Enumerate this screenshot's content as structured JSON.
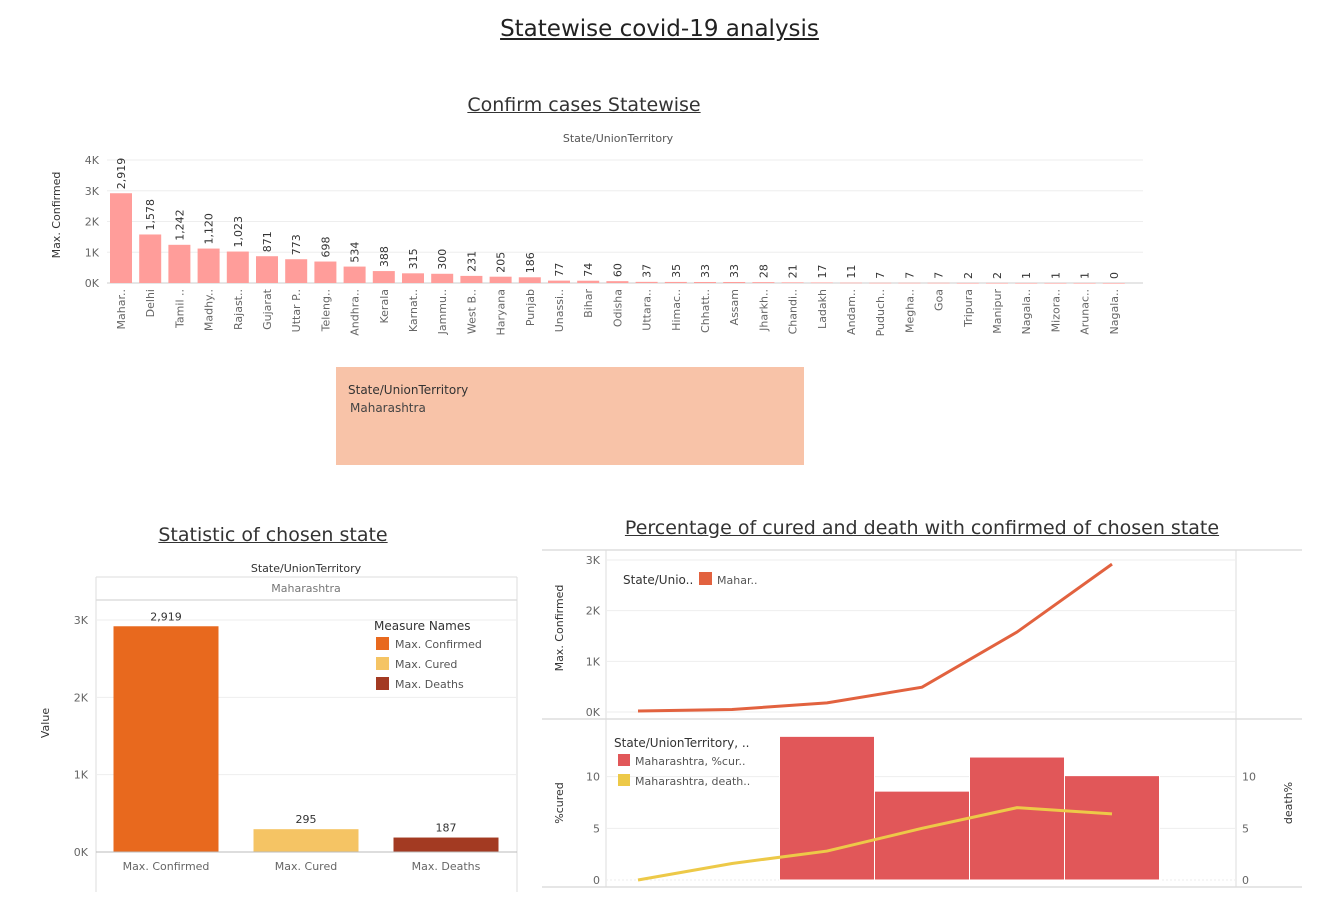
{
  "page_title": "Statewise covid-19 analysis",
  "filter": {
    "header": "State/UnionTerritory",
    "value": "Maharashtra"
  },
  "chart_data": [
    {
      "type": "bar",
      "title": "Confirm cases Statewise",
      "header": "State/UnionTerritory",
      "ylabel": "Max. Confirmed",
      "ylim": [
        0,
        4000
      ],
      "yticks": [
        "0K",
        "1K",
        "2K",
        "3K",
        "4K"
      ],
      "color": "#ff9d9a",
      "categories": [
        "Mahar..",
        "Delhi",
        "Tamil ..",
        "Madhy..",
        "Rajast..",
        "Gujarat",
        "Uttar P..",
        "Teleng..",
        "Andhra..",
        "Kerala",
        "Karnat..",
        "Jammu..",
        "West B..",
        "Haryana",
        "Punjab",
        "Unassi..",
        "Bihar",
        "Odisha",
        "Uttara..",
        "Himac..",
        "Chhatt..",
        "Assam",
        "Jharkh..",
        "Chandi..",
        "Ladakh",
        "Andam..",
        "Puduch..",
        "Megha..",
        "Goa",
        "Tripura",
        "Manipur",
        "Nagala..",
        "Mizora..",
        "Arunac..",
        "Nagala.."
      ],
      "values": [
        2919,
        1578,
        1242,
        1120,
        1023,
        871,
        773,
        698,
        534,
        388,
        315,
        300,
        231,
        205,
        186,
        77,
        74,
        60,
        37,
        35,
        33,
        33,
        28,
        21,
        17,
        11,
        7,
        7,
        7,
        2,
        2,
        1,
        1,
        1,
        0
      ],
      "value_labels": [
        "2,919",
        "1,578",
        "1,242",
        "1,120",
        "1,023",
        "871",
        "773",
        "698",
        "534",
        "388",
        "315",
        "300",
        "231",
        "205",
        "186",
        "77",
        "74",
        "60",
        "37",
        "35",
        "33",
        "33",
        "28",
        "21",
        "17",
        "11",
        "7",
        "7",
        "7",
        "2",
        "2",
        "1",
        "1",
        "1",
        "0"
      ]
    },
    {
      "type": "bar",
      "title": "Statistic of chosen state",
      "header": "State/UnionTerritory",
      "header_value": "Maharashtra",
      "ylabel": "Value",
      "ylim": [
        0,
        3000
      ],
      "yticks": [
        "0K",
        "1K",
        "2K",
        "3K"
      ],
      "categories": [
        "Max. Confirmed",
        "Max. Cured",
        "Max. Deaths"
      ],
      "values": [
        2919,
        295,
        187
      ],
      "value_labels": [
        "2,919",
        "295",
        "187"
      ],
      "colors": [
        "#e8691e",
        "#f5c464",
        "#a33a22"
      ],
      "legend": {
        "title": "Measure Names",
        "items": [
          "Max. Confirmed",
          "Max. Cured",
          "Max. Deaths"
        ],
        "position": "top-right"
      }
    },
    {
      "type": "line",
      "title": "Percentage of cured and death with confirmed of chosen state",
      "ylabel": "Max. Confirmed",
      "ylim": [
        0,
        3000
      ],
      "yticks": [
        "0K",
        "1K",
        "2K",
        "3K"
      ],
      "color": "#e2623f",
      "legend": {
        "title": "State/Unio..",
        "item": "Mahar..",
        "position": "top-left"
      },
      "values": [
        20,
        50,
        180,
        490,
        1578,
        2919
      ]
    },
    {
      "type": "bar",
      "ylabel_left": "%cured",
      "ylabel_right": "death%",
      "ylim": [
        0,
        15
      ],
      "yticks": [
        "0",
        "5",
        "10"
      ],
      "bar_color": "#e15759",
      "line_color": "#edc948",
      "legend": {
        "title": "State/UnionTerritory, ..",
        "items": [
          "Maharashtra, %cur..",
          "Maharashtra, death.."
        ],
        "position": "top-left"
      },
      "cured_pct": [
        0,
        0,
        13.9,
        8.6,
        11.9,
        10.1
      ],
      "death_pct": [
        0,
        1.6,
        2.8,
        5.0,
        7.0,
        6.4
      ]
    }
  ]
}
